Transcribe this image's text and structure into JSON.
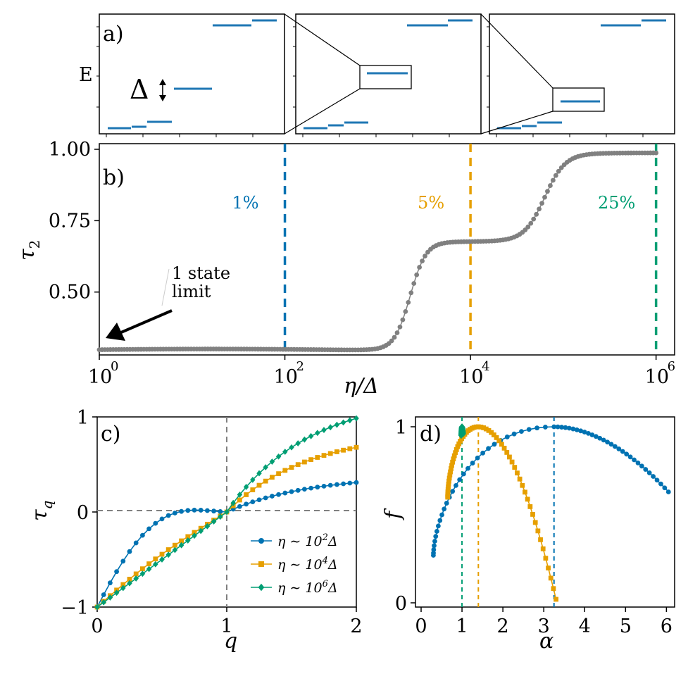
{
  "chart_data": [
    {
      "panel": "a",
      "type": "scatter",
      "label": "a)",
      "ylabel": "E",
      "delta_label": "Δ",
      "description_levels": "three sub-panels of energy levels clustered in plateaus; zoom boxes link left to right",
      "colors": {
        "levels": "#1f77b4",
        "box": "#000000"
      }
    },
    {
      "panel": "b",
      "type": "line",
      "label": "b)",
      "xlabel": "η/Δ",
      "ylabel": "τ",
      "ylabel_sub": "2",
      "xscale": "log",
      "xlim_log10": [
        0,
        6.2
      ],
      "ylim": [
        0.26,
        1.0
      ],
      "yticks": [
        "0.50",
        "0.75",
        "1.00"
      ],
      "ytick_values": [
        0.5,
        0.75,
        1.0
      ],
      "xtick_base": "10",
      "xtick_exponents": [
        "0",
        "2",
        "4",
        "6"
      ],
      "vlines": [
        {
          "x_log10": 2,
          "label": "1%",
          "color": "#0072b2"
        },
        {
          "x_log10": 4,
          "label": "5%",
          "color": "#e69f00"
        },
        {
          "x_log10": 6,
          "label": "25%",
          "color": "#009e73"
        }
      ],
      "annotation": {
        "line1": "1 state",
        "line2": "limit"
      },
      "series_color": "#808080",
      "plateaus": {
        "low": 0.298,
        "mid": 0.679,
        "high": 0.985,
        "step1_log10": 3.35,
        "step2_log10": 4.8
      }
    },
    {
      "panel": "c",
      "type": "line",
      "label": "c)",
      "xlabel": "q",
      "ylabel": "τ",
      "ylabel_sub": "q",
      "xlim": [
        0,
        2
      ],
      "ylim": [
        -1,
        1
      ],
      "xticks": [
        "0",
        "1",
        "2"
      ],
      "yticks": [
        "−1",
        "0",
        "1"
      ],
      "series": [
        {
          "name": "η ∼ 10",
          "sup": "2",
          "suffix": "Δ",
          "D": 0.31,
          "curv": 1.0,
          "color": "#0072b2",
          "marker": "circle"
        },
        {
          "name": "η ∼ 10",
          "sup": "4",
          "suffix": "Δ",
          "D": 0.68,
          "curv": 0.28,
          "color": "#e69f00",
          "marker": "square"
        },
        {
          "name": "η ∼ 10",
          "sup": "6",
          "suffix": "Δ",
          "D": 0.985,
          "curv": 0.03,
          "color": "#009e73",
          "marker": "diamond"
        }
      ]
    },
    {
      "panel": "d",
      "type": "line",
      "label": "d)",
      "xlabel": "α",
      "ylabel": "f",
      "xlim": [
        0,
        6.2
      ],
      "ylim": [
        0,
        1
      ],
      "xticks": [
        "0",
        "1",
        "2",
        "3",
        "4",
        "5",
        "6"
      ],
      "yticks": [
        "0",
        "1"
      ],
      "series": [
        {
          "name": "η ∼ 10²Δ",
          "alpha_min": 0.3,
          "alpha_peak": 3.25,
          "alpha_max": 6.05,
          "f_min": 0.27,
          "f_right": 0.63,
          "color": "#0072b2",
          "vline": 3.25
        },
        {
          "name": "η ∼ 10⁴Δ",
          "alpha_min": 0.65,
          "alpha_peak": 1.4,
          "alpha_max": 3.3,
          "f_min": 0.6,
          "f_right": 0.02,
          "color": "#e69f00",
          "vline": 1.4
        },
        {
          "name": "η ∼ 10⁶Δ",
          "alpha_min": 0.98,
          "alpha_peak": 1.0,
          "alpha_max": 1.03,
          "f_min": 0.95,
          "f_right": 0.96,
          "color": "#009e73",
          "vline": 1.0
        }
      ]
    }
  ]
}
